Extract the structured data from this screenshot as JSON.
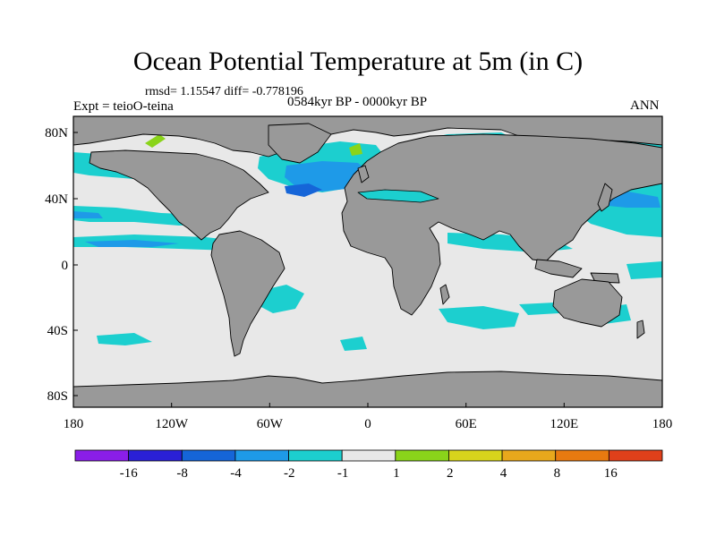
{
  "title": "Ocean Potential Temperature at 5m (in C)",
  "stats": "rmsd= 1.15547 diff= -0.778196",
  "period": "0584kyr BP - 0000kyr BP",
  "experiment": "Expt = teioO-teina",
  "season": "ANN",
  "axes": {
    "x_ticks": [
      "180",
      "120W",
      "60W",
      "0",
      "60E",
      "120E",
      "180"
    ],
    "y_ticks": [
      "80N",
      "40N",
      "0",
      "40S",
      "80S"
    ]
  },
  "colorbar": {
    "colors": [
      "#8a1ee8",
      "#2a20d6",
      "#1565d8",
      "#1e9ae8",
      "#1ccfcf",
      "#e8e8e8",
      "#8ad41a",
      "#d8d41c",
      "#e8a81c",
      "#e87a10",
      "#e0401a"
    ],
    "labels": [
      "-16",
      "-8",
      "-4",
      "-2",
      "-1",
      "1",
      "2",
      "4",
      "8",
      "16"
    ]
  },
  "colors": {
    "ocean_background": "#e8e8e8",
    "land": "#999999",
    "cool_anomaly": "#1ccfcf",
    "moderate_cool": "#1e9ae8",
    "strong_cool": "#1565d8",
    "warm_anomaly": "#8ad41a"
  }
}
